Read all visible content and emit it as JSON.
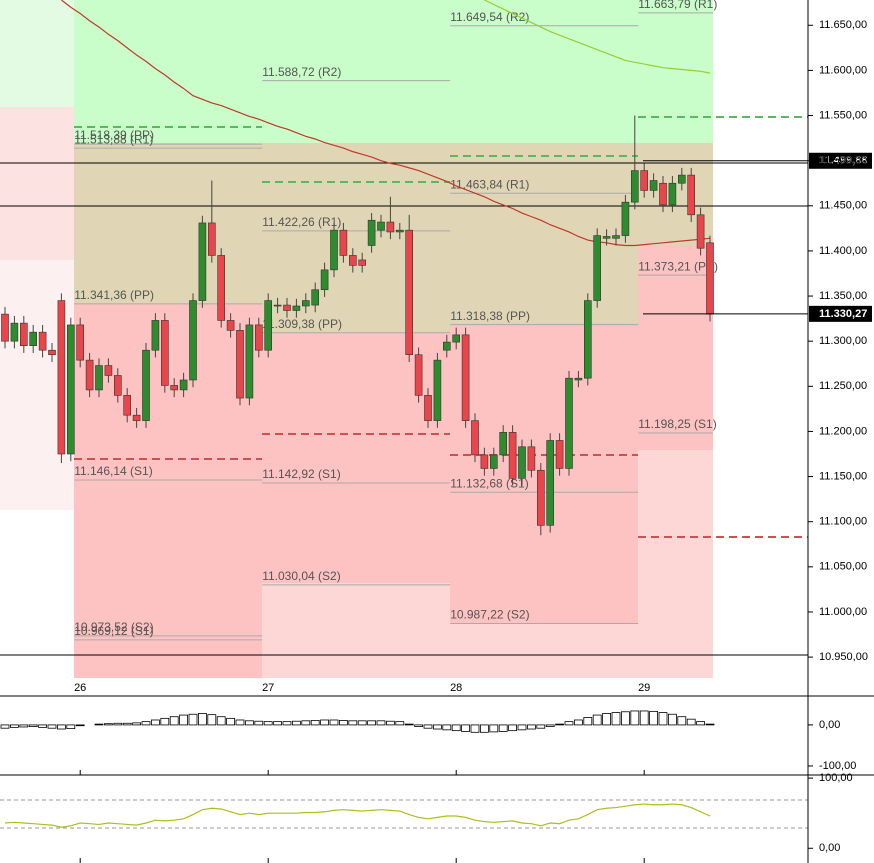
{
  "chart_data": [
    {
      "type": "candlestick",
      "categories": [
        null,
        null,
        null,
        null,
        null,
        null,
        null,
        null,
        "26",
        null,
        null,
        null,
        null,
        null,
        null,
        null,
        null,
        null,
        null,
        null,
        null,
        null,
        null,
        null,
        null,
        null,
        null,
        null,
        "27",
        null,
        null,
        null,
        null,
        null,
        null,
        null,
        null,
        null,
        null,
        null,
        null,
        null,
        null,
        null,
        null,
        null,
        null,
        null,
        "28",
        null,
        null,
        null,
        null,
        null,
        null,
        null,
        null,
        null,
        null,
        null,
        null,
        null,
        null,
        null,
        null,
        null,
        null,
        null,
        "29",
        null,
        null,
        null,
        null,
        null,
        null,
        null
      ],
      "open": [
        11330,
        11300,
        11320,
        11295,
        11310,
        11290,
        11345,
        11175,
        11318,
        11279,
        11246,
        11273,
        11262,
        11240,
        11218,
        11212,
        11290,
        11323,
        11251,
        11246,
        11257,
        11345,
        11431,
        11395,
        11323,
        11312,
        11237,
        11318,
        11290,
        11339,
        11340,
        11334,
        11339,
        11340,
        11357,
        11379,
        11423,
        11395,
        11390,
        11406,
        11423,
        11432,
        11421,
        11423,
        11285,
        11240,
        11212,
        11290,
        11299,
        11307,
        11212,
        11174,
        11159,
        11174,
        11199,
        11148,
        11183,
        11157,
        11096,
        11190,
        11159,
        11257,
        11259,
        11345,
        11414,
        11414,
        11417,
        11454,
        11489,
        11467,
        11475,
        11451,
        11475,
        11484,
        11440,
        11409
      ],
      "high": [
        11338,
        11328,
        11328,
        11318,
        11318,
        11298,
        11353,
        11326,
        11326,
        11287,
        11281,
        11281,
        11270,
        11248,
        11226,
        11298,
        11331,
        11331,
        11259,
        11265,
        11353,
        11439,
        11478,
        11403,
        11331,
        11320,
        11326,
        11326,
        11353,
        11348,
        11348,
        11347,
        11353,
        11365,
        11387,
        11431,
        11431,
        11403,
        11398,
        11442,
        11440,
        11460,
        11431,
        11440,
        11293,
        11248,
        11287,
        11307,
        11315,
        11315,
        11220,
        11182,
        11182,
        11207,
        11207,
        11191,
        11191,
        11165,
        11198,
        11198,
        11267,
        11267,
        11353,
        11425,
        11424,
        11425,
        11462,
        11550,
        11497,
        11486,
        11483,
        11483,
        11492,
        11492,
        11448,
        11417
      ],
      "low": [
        11292,
        11292,
        11287,
        11287,
        11282,
        11277,
        11165,
        11167,
        11271,
        11238,
        11238,
        11254,
        11232,
        11210,
        11204,
        11204,
        11282,
        11243,
        11238,
        11238,
        11249,
        11337,
        11387,
        11315,
        11304,
        11229,
        11229,
        11282,
        11282,
        11331,
        11326,
        11326,
        11331,
        11332,
        11349,
        11371,
        11387,
        11376,
        11376,
        11398,
        11415,
        11413,
        11413,
        11277,
        11232,
        11204,
        11204,
        11282,
        11291,
        11204,
        11166,
        11151,
        11151,
        11166,
        11140,
        11140,
        11149,
        11085,
        11088,
        11151,
        11151,
        11249,
        11251,
        11337,
        11406,
        11406,
        11409,
        11446,
        11459,
        11459,
        11443,
        11443,
        11467,
        11432,
        11395,
        11322
      ],
      "close": [
        11300,
        11320,
        11295,
        11310,
        11290,
        11285,
        11175,
        11318,
        11279,
        11246,
        11273,
        11262,
        11240,
        11218,
        11212,
        11290,
        11323,
        11251,
        11246,
        11257,
        11345,
        11431,
        11395,
        11323,
        11312,
        11237,
        11318,
        11290,
        11345,
        11340,
        11334,
        11339,
        11345,
        11357,
        11379,
        11423,
        11395,
        11384,
        11384,
        11434,
        11432,
        11421,
        11423,
        11285,
        11240,
        11212,
        11279,
        11299,
        11307,
        11212,
        11174,
        11159,
        11174,
        11199,
        11148,
        11183,
        11157,
        11096,
        11190,
        11159,
        11259,
        11259,
        11345,
        11417,
        11416,
        11417,
        11454,
        11489,
        11467,
        11478,
        11451,
        11475,
        11484,
        11440,
        11403,
        11330
      ],
      "up_color": "#2e8b2e",
      "down_color": "#e8464a",
      "lines": [
        {
          "color": "#c0392b",
          "values": [
            null,
            null,
            null,
            null,
            null,
            null,
            11678,
            11670,
            11663,
            11655,
            11648,
            11640,
            11633,
            11625,
            11617,
            11610,
            11602,
            11595,
            11587,
            11580,
            11572,
            11568,
            11564,
            11561,
            11557,
            11553,
            11549,
            11546,
            11542,
            11538,
            11535,
            11531,
            11527,
            11524,
            11520,
            11517,
            11514,
            11510,
            11507,
            11504,
            11500,
            11497,
            11495,
            11492,
            11489,
            11485,
            11481,
            11477,
            11472,
            11468,
            11464,
            11460,
            11455,
            11451,
            11447,
            11442,
            11438,
            11434,
            11429,
            11425,
            11421,
            11416,
            11412,
            11410,
            11409,
            11407,
            11406,
            11406,
            11407,
            11408,
            11409,
            11410,
            11411,
            11412,
            11413,
            11414
          ]
        },
        {
          "color": "#9acd32",
          "values": [
            null,
            null,
            null,
            null,
            null,
            null,
            null,
            null,
            null,
            null,
            null,
            null,
            null,
            null,
            null,
            null,
            null,
            null,
            null,
            null,
            null,
            null,
            null,
            null,
            null,
            null,
            null,
            null,
            null,
            null,
            null,
            null,
            null,
            null,
            null,
            null,
            null,
            null,
            null,
            null,
            null,
            null,
            null,
            null,
            null,
            null,
            null,
            null,
            null,
            null,
            null,
            11678,
            11673,
            11668,
            11663,
            11658,
            11653,
            11648,
            11643,
            11639,
            11635,
            11631,
            11627,
            11623,
            11619,
            11615,
            11611,
            11609,
            11607,
            11605,
            11603,
            11602,
            11601,
            11600,
            11599,
            11597
          ]
        }
      ],
      "pivot_levels": [
        [
          {
            "label": "11.518,39 (PP)",
            "value": 11518.39
          },
          {
            "label": "11.513,88 (R1)",
            "value": 11513.88
          },
          {
            "label": "11.341,36 (PP)",
            "value": 11341.36
          },
          {
            "label": "11.146,14 (S1)",
            "value": 11146.14
          },
          {
            "label": "10.973,52 (S2)",
            "value": 10973.52
          },
          {
            "label": "10.969,12 (S1)",
            "value": 10969.12
          }
        ],
        [
          {
            "label": "11.588,72 (R2)",
            "value": 11588.72
          },
          {
            "label": "11.422,26 (R1)",
            "value": 11422.26
          },
          {
            "label": "11.309,38 (PP)",
            "value": 11309.38
          },
          {
            "label": "11.142,92 (S1)",
            "value": 11142.92
          },
          {
            "label": "11.030,04 (S2)",
            "value": 11030.04
          }
        ],
        [
          {
            "label": "11.649,54 (R2)",
            "value": 11649.54
          },
          {
            "label": "11.463,84 (R1)",
            "value": 11463.84
          },
          {
            "label": "11.318,38 (PP)",
            "value": 11318.38
          },
          {
            "label": "11.132,68 (S1)",
            "value": 11132.68
          },
          {
            "label": "10.987,22 (S2)",
            "value": 10987.22
          }
        ],
        [
          {
            "label": "11.663,79 (R1)",
            "value": 11663.79
          },
          {
            "label": "11.373,21 (PP)",
            "value": 11373.21
          },
          {
            "label": "11.198,25 (S1)",
            "value": 11198.25
          }
        ]
      ],
      "price_markers": [
        {
          "value": 11499.88,
          "label": "11.499,88"
        },
        {
          "value": 11330.27,
          "label": "11.330,27"
        }
      ],
      "ylim": [
        10908,
        11678
      ],
      "yticks": [
        {
          "value": 10950,
          "label": "10.950,00"
        },
        {
          "value": 11000,
          "label": "11.000,00"
        },
        {
          "value": 11050,
          "label": "11.050,00"
        },
        {
          "value": 11100,
          "label": "11.100,00"
        },
        {
          "value": 11150,
          "label": "11.150,00"
        },
        {
          "value": 11200,
          "label": "11.200,00"
        },
        {
          "value": 11250,
          "label": "11.250,00"
        },
        {
          "value": 11300,
          "label": "11.300,00"
        },
        {
          "value": 11350,
          "label": "11.350,00"
        },
        {
          "value": 11400,
          "label": "11.400,00"
        },
        {
          "value": 11450,
          "label": "11.450,00"
        },
        {
          "value": 11500,
          "label": "11.500,00"
        },
        {
          "value": 11550,
          "label": "11.550,00"
        },
        {
          "value": 11600,
          "label": "11.600,00"
        },
        {
          "value": 11650,
          "label": "11.650,00"
        }
      ]
    },
    {
      "type": "bar",
      "values": [
        -8,
        -6,
        -5,
        -4,
        -6,
        -8,
        -10,
        -9,
        -2,
        0,
        2,
        3,
        4,
        4,
        5,
        8,
        12,
        16,
        20,
        24,
        26,
        28,
        25,
        20,
        16,
        12,
        10,
        9,
        8,
        8,
        8,
        9,
        10,
        11,
        12,
        12,
        11,
        10,
        10,
        10,
        10,
        9,
        8,
        2,
        -4,
        -8,
        -10,
        -12,
        -14,
        -16,
        -18,
        -18,
        -17,
        -16,
        -14,
        -12,
        -10,
        -8,
        -4,
        2,
        8,
        12,
        18,
        24,
        28,
        30,
        32,
        34,
        34,
        33,
        30,
        26,
        20,
        14,
        8,
        2
      ],
      "color": "#ffffff",
      "ylim": [
        -122,
        68
      ],
      "yticks": [
        {
          "value": 0,
          "label": "0,00"
        },
        {
          "value": -100,
          "label": "-100,00"
        }
      ]
    },
    {
      "type": "line",
      "values": [
        36,
        37,
        36,
        35,
        34,
        33,
        30,
        32,
        36,
        35,
        34,
        36,
        35,
        34,
        33,
        36,
        40,
        39,
        40,
        42,
        48,
        55,
        57,
        56,
        52,
        48,
        50,
        48,
        50,
        50,
        50,
        50,
        51,
        51,
        52,
        54,
        55,
        54,
        53,
        54,
        55,
        54,
        53,
        48,
        44,
        42,
        44,
        46,
        46,
        44,
        40,
        38,
        37,
        38,
        39,
        36,
        35,
        32,
        36,
        35,
        40,
        42,
        48,
        55,
        57,
        58,
        60,
        62,
        63,
        62,
        62,
        63,
        62,
        58,
        52,
        46
      ],
      "color": "#a8c020",
      "ylim": [
        -21,
        103
      ],
      "yticks": [
        {
          "value": 100,
          "label": "100,00"
        },
        {
          "value": 0,
          "label": "0,00"
        }
      ]
    }
  ]
}
